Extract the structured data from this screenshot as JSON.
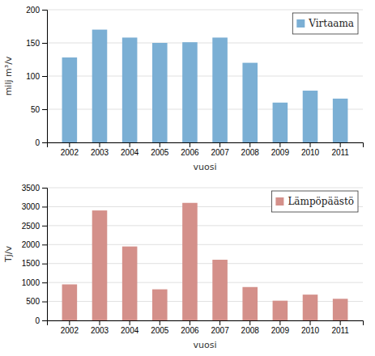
{
  "chart_data": [
    {
      "type": "bar",
      "categories": [
        "2002",
        "2003",
        "2004",
        "2005",
        "2006",
        "2007",
        "2008",
        "2009",
        "2010",
        "2011"
      ],
      "series": [
        {
          "name": "Virtaama",
          "color": "#7bafd4",
          "values": [
            128,
            170,
            158,
            150,
            151,
            158,
            120,
            60,
            78,
            66
          ]
        }
      ],
      "xlabel": "vuosi",
      "ylabel": "milj m³/v",
      "ylim": [
        0,
        200
      ],
      "yticks": [
        0,
        50,
        100,
        150,
        200
      ],
      "grid": true,
      "legend": "top-right"
    },
    {
      "type": "bar",
      "categories": [
        "2002",
        "2003",
        "2004",
        "2005",
        "2006",
        "2007",
        "2008",
        "2009",
        "2010",
        "2011"
      ],
      "series": [
        {
          "name": "Lämpöpäästö",
          "color": "#d4908a",
          "values": [
            950,
            2900,
            1950,
            820,
            3100,
            1600,
            880,
            520,
            680,
            570
          ]
        }
      ],
      "xlabel": "vuosi",
      "ylabel": "Tj/v",
      "ylim": [
        0,
        3500
      ],
      "yticks": [
        0,
        500,
        1000,
        1500,
        2000,
        2500,
        3000,
        3500
      ],
      "grid": true,
      "legend": "top-right"
    }
  ]
}
